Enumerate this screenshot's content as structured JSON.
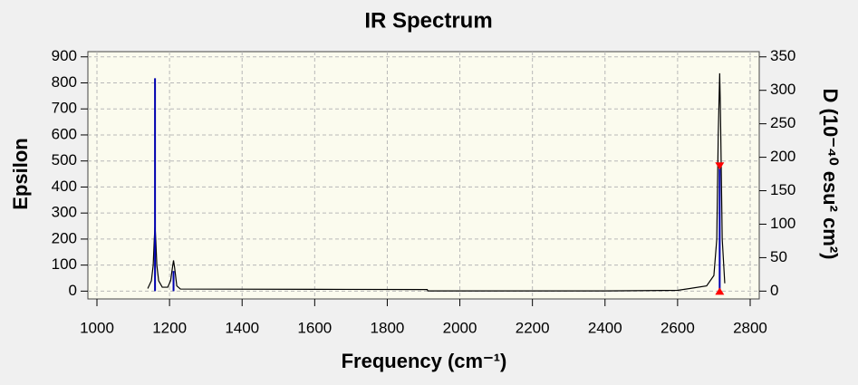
{
  "chart_data": {
    "type": "line",
    "title": "IR Spectrum",
    "xlabel": "Frequency (cm⁻¹)",
    "ylabel": "Epsilon",
    "y2label": "D (10⁻⁴⁰ esu² cm²)",
    "xlim": [
      975,
      2825
    ],
    "xticks": [
      1000,
      1200,
      1400,
      1600,
      1800,
      2000,
      2200,
      2400,
      2600,
      2800
    ],
    "ylim": [
      -30,
      920
    ],
    "yticks": [
      0,
      100,
      200,
      300,
      400,
      500,
      600,
      700,
      800,
      900
    ],
    "y2lim": [
      -11.7,
      357.8
    ],
    "y2ticks": [
      0,
      50,
      100,
      150,
      200,
      250,
      300,
      350
    ],
    "grid": true,
    "spectrum": {
      "color": "#000000",
      "x": [
        1140,
        1150,
        1155,
        1158,
        1160,
        1162,
        1165,
        1170,
        1180,
        1195,
        1203,
        1208,
        1211,
        1214,
        1220,
        1230,
        1600,
        1910,
        1912,
        2400,
        2600,
        2680,
        2700,
        2708,
        2712,
        2716,
        2718,
        2720,
        2723,
        2730
      ],
      "values": [
        10,
        40,
        100,
        200,
        250,
        200,
        100,
        40,
        15,
        15,
        40,
        90,
        118,
        90,
        20,
        8,
        7,
        6,
        1,
        1,
        3,
        20,
        60,
        200,
        600,
        837,
        700,
        500,
        200,
        30
      ]
    },
    "sticks": {
      "color": "#0000b0",
      "axis": "y2",
      "x": [
        1160,
        1211,
        2716
      ],
      "values": [
        318,
        30,
        187
      ]
    },
    "marker": {
      "color": "#ff0000",
      "axis": "y2",
      "x": [
        2716,
        2716
      ],
      "values": [
        187,
        0
      ]
    }
  }
}
